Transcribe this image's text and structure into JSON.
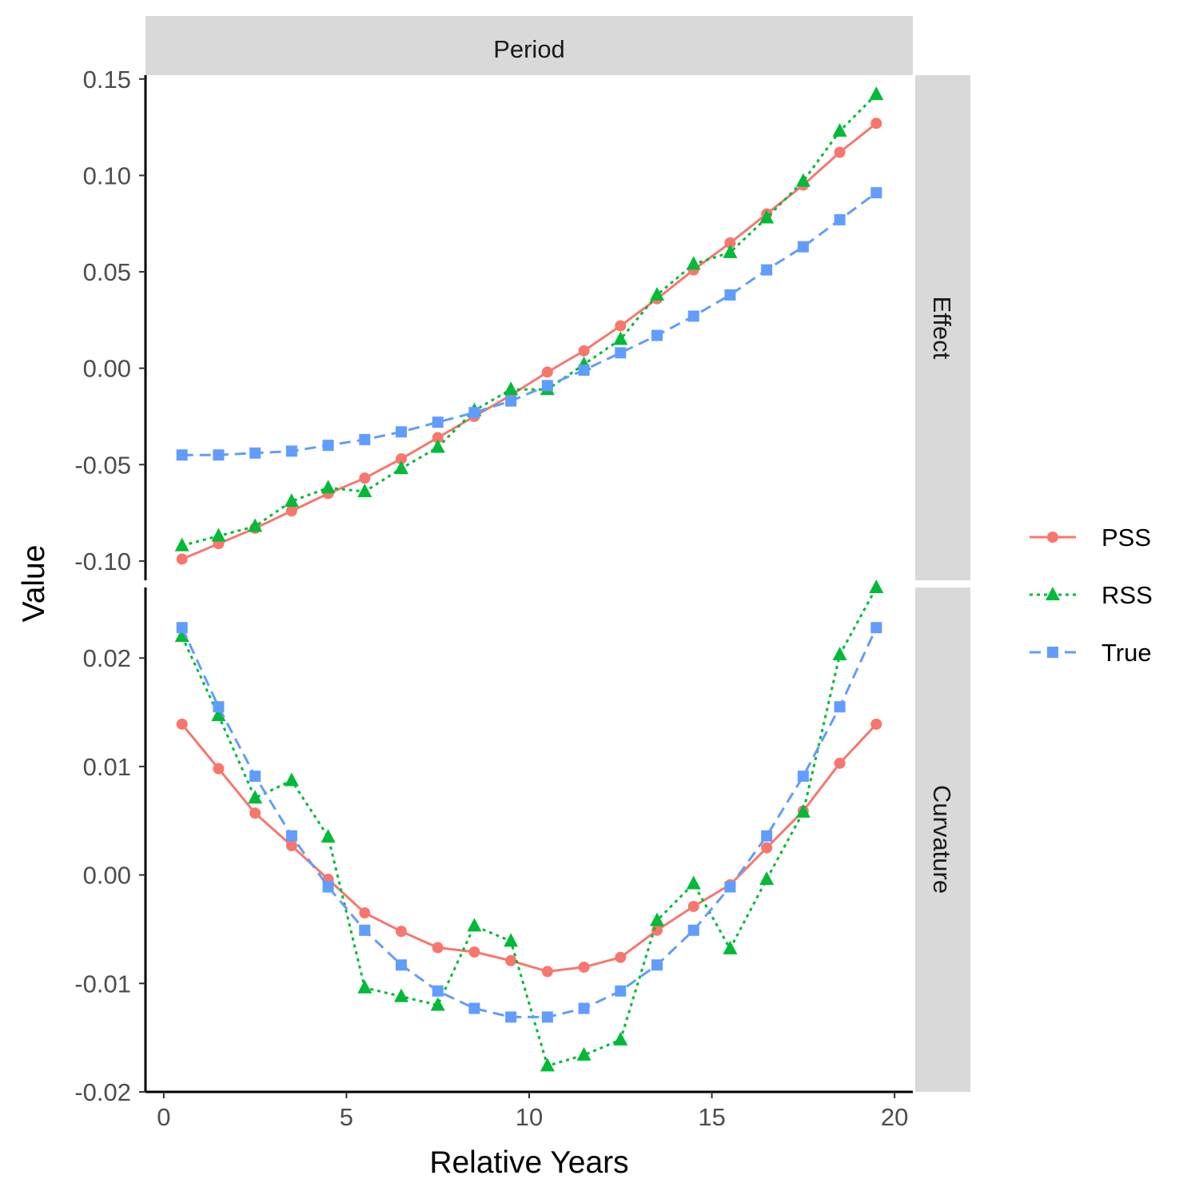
{
  "chart_data": {
    "type": "line",
    "facet_column_label": "Period",
    "xlabel": "Relative Years",
    "ylabel": "Value",
    "x": [
      0.5,
      1.5,
      2.5,
      3.5,
      4.5,
      5.5,
      6.5,
      7.5,
      8.5,
      9.5,
      10.5,
      11.5,
      12.5,
      13.5,
      14.5,
      15.5,
      16.5,
      17.5,
      18.5,
      19.5
    ],
    "xlim": [
      -0.5,
      20.5
    ],
    "xticks": [
      0,
      5,
      10,
      15,
      20
    ],
    "xtick_labels": [
      "0",
      "5",
      "10",
      "15",
      "20"
    ],
    "legend": {
      "placement": "right",
      "entries": [
        "PSS",
        "RSS",
        "True"
      ]
    },
    "styles": {
      "PSS": {
        "color": "#f8766d",
        "marker": "circle",
        "line": "solid"
      },
      "RSS": {
        "color": "#00ba38",
        "marker": "triangle",
        "line": "dotted"
      },
      "True": {
        "color": "#619cff",
        "marker": "square",
        "line": "dashed"
      }
    },
    "panels": [
      {
        "label": "Effect",
        "ylim": [
          -0.11,
          0.152
        ],
        "yticks": [
          -0.1,
          -0.05,
          0.0,
          0.05,
          0.1,
          0.15
        ],
        "ytick_labels": [
          "-0.10",
          "-0.05",
          "0.00",
          "0.05",
          "0.10",
          "0.15"
        ],
        "series": [
          {
            "name": "PSS",
            "values": [
              -0.099,
              -0.091,
              -0.083,
              -0.074,
              -0.065,
              -0.057,
              -0.047,
              -0.036,
              -0.025,
              -0.014,
              -0.002,
              0.009,
              0.022,
              0.036,
              0.051,
              0.065,
              0.08,
              0.095,
              0.112,
              0.127
            ]
          },
          {
            "name": "RSS",
            "values": [
              -0.092,
              -0.087,
              -0.082,
              -0.069,
              -0.062,
              -0.064,
              -0.052,
              -0.041,
              -0.022,
              -0.011,
              -0.011,
              0.002,
              0.015,
              0.038,
              0.054,
              0.06,
              0.078,
              0.097,
              0.123,
              0.142
            ]
          },
          {
            "name": "True",
            "values": [
              -0.045,
              -0.045,
              -0.044,
              -0.043,
              -0.04,
              -0.037,
              -0.033,
              -0.028,
              -0.023,
              -0.017,
              -0.009,
              -0.001,
              0.008,
              0.017,
              0.027,
              0.038,
              0.051,
              0.063,
              0.077,
              0.091
            ]
          }
        ]
      },
      {
        "label": "Curvature",
        "ylim": [
          -0.02,
          0.0265
        ],
        "yticks": [
          -0.02,
          -0.01,
          0.0,
          0.01,
          0.02
        ],
        "ytick_labels": [
          "-0.02",
          "-0.01",
          "0.00",
          "0.01",
          "0.02"
        ],
        "series": [
          {
            "name": "PSS",
            "values": [
              0.0139,
              0.0098,
              0.0057,
              0.0027,
              -0.0004,
              -0.0035,
              -0.0052,
              -0.0067,
              -0.0071,
              -0.0079,
              -0.0089,
              -0.0085,
              -0.0076,
              -0.0051,
              -0.0029,
              -0.0009,
              0.0025,
              0.0059,
              0.0103,
              0.0139
            ]
          },
          {
            "name": "RSS",
            "values": [
              0.022,
              0.0147,
              0.0071,
              0.0087,
              0.0035,
              -0.0104,
              -0.0112,
              -0.012,
              -0.0047,
              -0.0061,
              -0.0176,
              -0.0166,
              -0.0152,
              -0.0042,
              -0.0008,
              -0.0068,
              -0.0004,
              0.0058,
              0.0203,
              0.0265
            ]
          },
          {
            "name": "True",
            "values": [
              0.0228,
              0.0155,
              0.0091,
              0.0036,
              -0.0011,
              -0.0051,
              -0.0083,
              -0.0107,
              -0.0123,
              -0.0131,
              -0.0131,
              -0.0123,
              -0.0107,
              -0.0083,
              -0.0051,
              -0.0011,
              0.0036,
              0.0091,
              0.0155,
              0.0228
            ]
          }
        ]
      }
    ]
  }
}
